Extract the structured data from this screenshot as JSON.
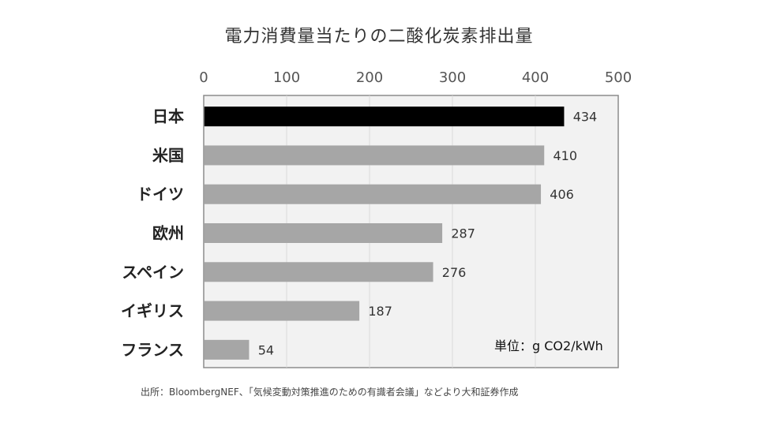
{
  "chart_data": {
    "type": "bar",
    "orientation": "horizontal",
    "title": "電力消費量当たりの二酸化炭素排出量",
    "categories": [
      "日本",
      "米国",
      "ドイツ",
      "欧州",
      "スペイン",
      "イギリス",
      "フランス"
    ],
    "values": [
      434,
      410,
      406,
      287,
      276,
      187,
      54
    ],
    "data_labels": [
      "434",
      "410",
      "406",
      "287",
      "276",
      "187",
      "54"
    ],
    "xlim": [
      0,
      500
    ],
    "x_ticks": [
      0,
      100,
      200,
      300,
      400,
      500
    ],
    "tick_labels": [
      "0",
      "100",
      "200",
      "300",
      "400",
      "500"
    ],
    "axis_position": "top",
    "grid": true,
    "colors": {
      "highlight": "#000000",
      "default": "#a6a6a6",
      "plot_background": "#f2f2f2",
      "gridline": "#d9d9d9",
      "frame": "#8c8c8c"
    },
    "highlight_index": 0
  },
  "unit_note": "単位：g CO2/kWh",
  "source_note": "出所：BloombergNEF、「気候変動対策推進のための有識者会議」などより大和証券作成"
}
